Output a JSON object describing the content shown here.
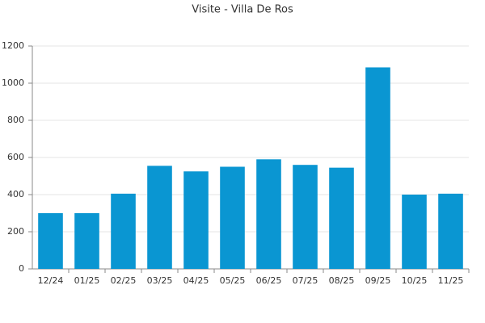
{
  "chart_data": {
    "type": "bar",
    "title": "Visite - Villa De Ros",
    "categories": [
      "12/24",
      "01/25",
      "02/25",
      "03/25",
      "04/25",
      "05/25",
      "06/25",
      "07/25",
      "08/25",
      "09/25",
      "10/25",
      "11/25"
    ],
    "values": [
      300,
      300,
      405,
      555,
      525,
      550,
      590,
      560,
      545,
      1085,
      400,
      405
    ],
    "color": "#0a96d2",
    "ylim": [
      0,
      1200
    ],
    "yticks": [
      0,
      200,
      400,
      600,
      800,
      1000,
      1200
    ],
    "grid": true
  }
}
